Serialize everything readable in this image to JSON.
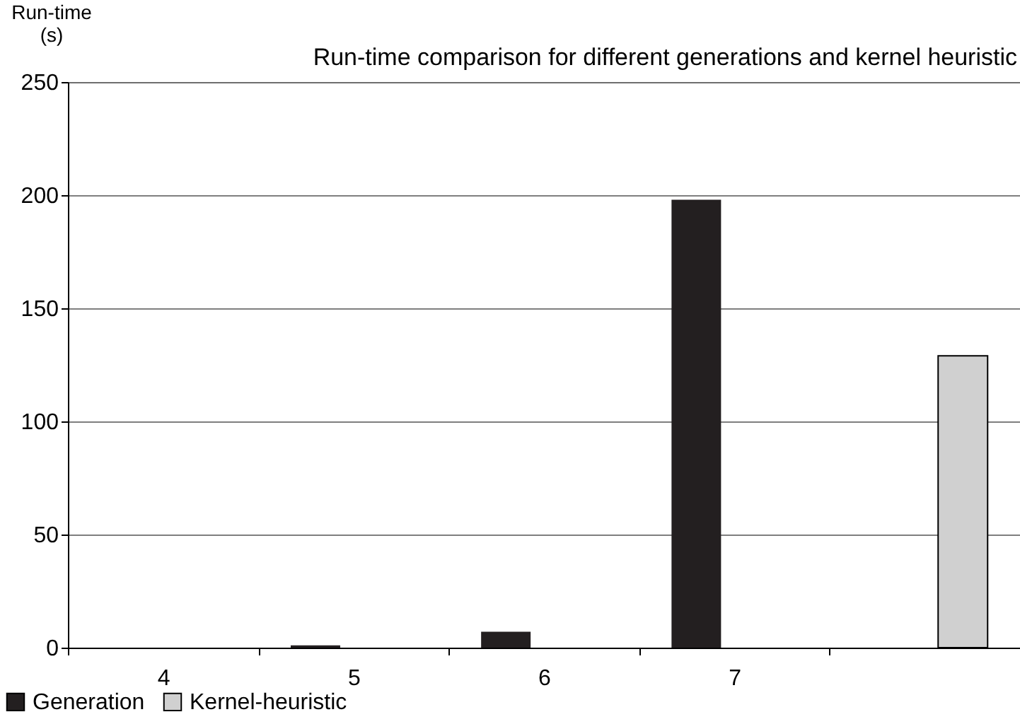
{
  "chart_data": {
    "type": "bar",
    "title": "Run-time comparison for different generations and kernel heuristic",
    "ylabel": "Run-time\n(s)",
    "categories": [
      "4",
      "5",
      "6",
      "7",
      null
    ],
    "series": [
      {
        "name": "Generation",
        "color": "#231f20",
        "values": [
          0,
          1,
          7,
          198,
          null
        ]
      },
      {
        "name": "Kernel-heuristic",
        "color": "#d0d0d0",
        "values": [
          null,
          null,
          null,
          null,
          129
        ]
      }
    ],
    "ylim": [
      0,
      250
    ],
    "yticks": [
      0,
      50,
      100,
      150,
      200,
      250
    ],
    "grid": "y",
    "legend": "bottom left"
  }
}
